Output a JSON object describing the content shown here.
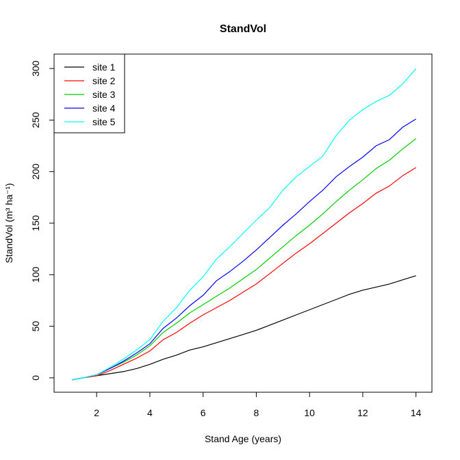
{
  "chart_data": {
    "type": "line",
    "title": "StandVol",
    "xlabel": "Stand Age (years)",
    "ylabel": "StandVol (m³ ha⁻¹)",
    "xlim": [
      0.4,
      14.6
    ],
    "ylim": [
      -14,
      314
    ],
    "xticks": [
      2,
      4,
      6,
      8,
      10,
      12,
      14
    ],
    "yticks": [
      0,
      50,
      100,
      150,
      200,
      250,
      300
    ],
    "grid": false,
    "legend_position": "top-left",
    "x": [
      1.08,
      1.5,
      2.0,
      2.5,
      3.0,
      3.5,
      4.0,
      4.5,
      5.0,
      5.5,
      6.0,
      6.5,
      7.0,
      7.5,
      8.0,
      8.5,
      9.0,
      9.5,
      10.0,
      10.5,
      11.0,
      11.5,
      12.0,
      12.5,
      13.0,
      13.5,
      14.0
    ],
    "series": [
      {
        "name": "site 1",
        "color": "#000000",
        "values": [
          -2,
          0,
          2,
          4,
          6,
          9,
          13,
          18,
          22,
          27,
          30,
          34,
          38,
          42,
          46,
          51,
          56,
          61,
          66,
          71,
          76,
          81,
          85,
          88,
          91,
          95,
          99
        ]
      },
      {
        "name": "site 2",
        "color": "#ff0000",
        "values": [
          -2,
          0,
          2,
          7,
          13,
          19,
          26,
          37,
          44,
          53,
          61,
          68,
          75,
          83,
          91,
          101,
          111,
          121,
          130,
          140,
          150,
          160,
          169,
          179,
          186,
          196,
          204
        ]
      },
      {
        "name": "site 3",
        "color": "#00cd00",
        "values": [
          -2,
          0,
          3,
          9,
          15,
          22,
          31,
          44,
          53,
          63,
          71,
          79,
          87,
          96,
          105,
          116,
          127,
          138,
          148,
          159,
          171,
          182,
          192,
          203,
          211,
          222,
          232
        ]
      },
      {
        "name": "site 4",
        "color": "#0000ff",
        "values": [
          -2,
          0,
          3,
          9,
          16,
          24,
          33,
          48,
          58,
          70,
          80,
          94,
          103,
          113,
          124,
          136,
          148,
          159,
          171,
          182,
          195,
          205,
          214,
          225,
          231,
          243,
          251
        ]
      },
      {
        "name": "site 5",
        "color": "#00ffff",
        "values": [
          -2,
          0,
          3,
          10,
          18,
          27,
          37,
          55,
          68,
          85,
          98,
          115,
          127,
          140,
          153,
          165,
          182,
          195,
          205,
          215,
          235,
          250,
          260,
          268,
          274,
          285,
          300
        ]
      }
    ]
  }
}
